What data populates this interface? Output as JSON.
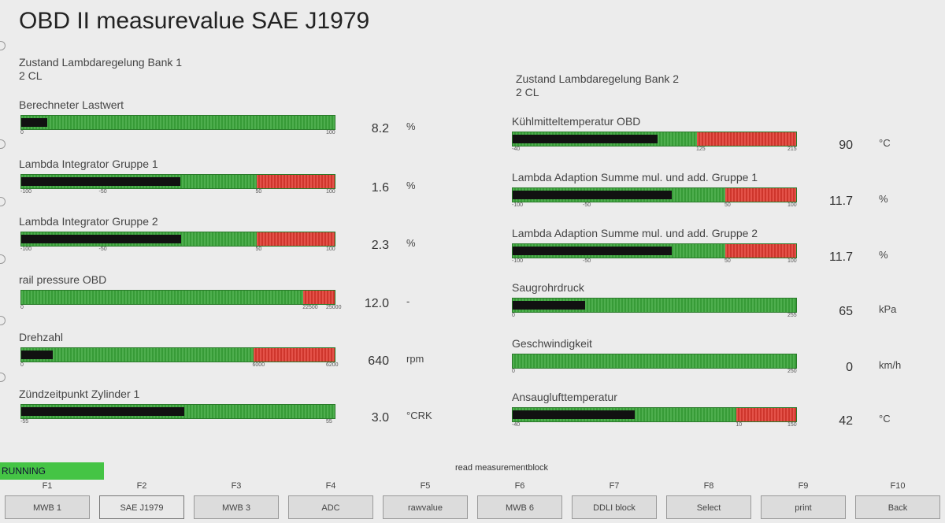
{
  "title": "OBD II measurevalue SAE J1979",
  "bank1_state": {
    "label": "Zustand Lambdaregelung Bank 1",
    "value": "2 CL"
  },
  "bank2_state": {
    "label": "Zustand Lambdaregelung Bank 2",
    "value": "2 CL"
  },
  "left_meters": [
    {
      "label": "Berechneter Lastwert",
      "value": "8.2",
      "unit": "%",
      "fraction": 0.082,
      "ticks": [
        "0",
        "100"
      ],
      "red_start": null
    },
    {
      "label": "Lambda Integrator Gruppe 1",
      "value": "1.6",
      "unit": "%",
      "fraction": 0.508,
      "ticks": [
        "-100",
        "-50",
        "50",
        "100"
      ],
      "red_start": 0.75
    },
    {
      "label": "Lambda Integrator Gruppe 2",
      "value": "2.3",
      "unit": "%",
      "fraction": 0.511,
      "ticks": [
        "-100",
        "-50",
        "50",
        "100"
      ],
      "red_start": 0.75
    },
    {
      "label": "rail pressure OBD",
      "value": "12.0",
      "unit": "-",
      "fraction": 0.0,
      "ticks": [
        "0",
        "22500",
        "25000"
      ],
      "red_start": 0.9
    },
    {
      "label": "Drehzahl",
      "value": "640",
      "unit": "rpm",
      "fraction": 0.1,
      "ticks": [
        "0",
        "6000",
        "6200"
      ],
      "red_start": 0.74
    },
    {
      "label": "Zündzeitpunkt Zylinder 1",
      "value": "3.0",
      "unit": "°CRK",
      "fraction": 0.52,
      "ticks": [
        "-55",
        "55"
      ],
      "red_start": null
    }
  ],
  "right_meters": [
    {
      "label": "Kühlmitteltemperatur OBD",
      "value": "90",
      "unit": "°C",
      "fraction": 0.51,
      "ticks": [
        "-40",
        "125",
        "215"
      ],
      "red_start": 0.65
    },
    {
      "label": "Lambda Adaption Summe mul. und add. Gruppe 1",
      "value": "11.7",
      "unit": "%",
      "fraction": 0.56,
      "ticks": [
        "-100",
        "-50",
        "50",
        "100"
      ],
      "red_start": 0.75
    },
    {
      "label": "Lambda Adaption Summe mul. und add. Gruppe 2",
      "value": "11.7",
      "unit": "%",
      "fraction": 0.56,
      "ticks": [
        "-100",
        "-50",
        "50",
        "100"
      ],
      "red_start": 0.75
    },
    {
      "label": "Saugrohrdruck",
      "value": "65",
      "unit": "kPa",
      "fraction": 0.255,
      "ticks": [
        "0",
        "255"
      ],
      "red_start": null
    },
    {
      "label": "Geschwindigkeit",
      "value": "0",
      "unit": "km/h",
      "fraction": 0.0,
      "ticks": [
        "0",
        "250"
      ],
      "red_start": null
    },
    {
      "label": "Ansauglufttemperatur",
      "value": "42",
      "unit": "°C",
      "fraction": 0.43,
      "ticks": [
        "-40",
        "10",
        "150"
      ],
      "red_start": 0.79
    }
  ],
  "status": {
    "running": "RUNNING",
    "message": "read measurementblock"
  },
  "function_keys": [
    {
      "key": "F1",
      "label": "MWB 1"
    },
    {
      "key": "F2",
      "label": "SAE J1979"
    },
    {
      "key": "F3",
      "label": "MWB 3"
    },
    {
      "key": "F4",
      "label": "ADC"
    },
    {
      "key": "F5",
      "label": "rawvalue"
    },
    {
      "key": "F6",
      "label": "MWB 6"
    },
    {
      "key": "F7",
      "label": "DDLI block"
    },
    {
      "key": "F8",
      "label": "Select"
    },
    {
      "key": "F9",
      "label": "print"
    },
    {
      "key": "F10",
      "label": "Back"
    }
  ],
  "colors": {
    "bar_green": "#3aa53a",
    "bar_red": "#e03a30",
    "needle": "#111111",
    "running_bg": "#45c445"
  }
}
